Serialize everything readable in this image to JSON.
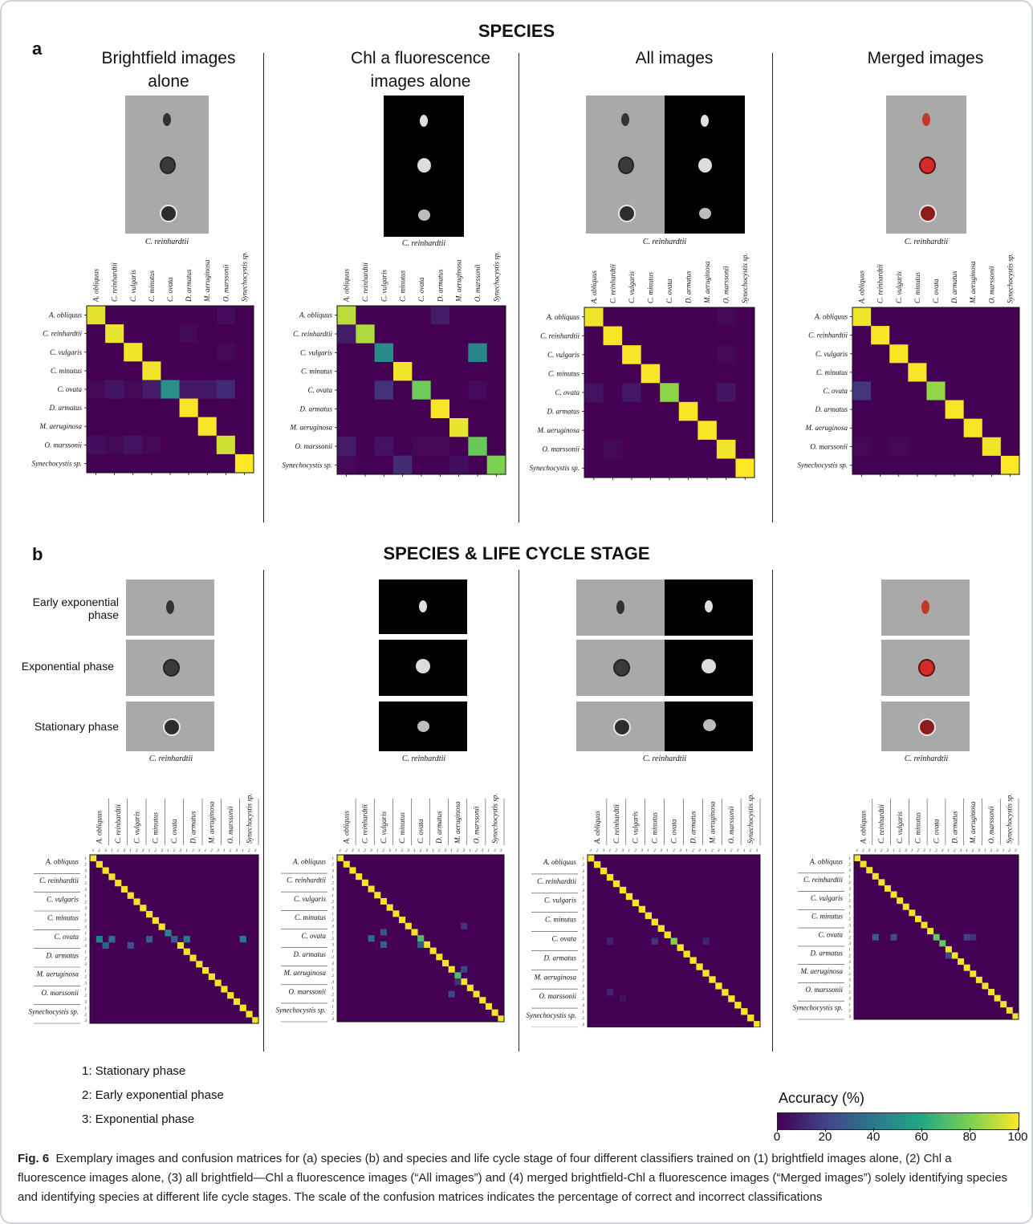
{
  "header": {
    "panel_a_letter": "a",
    "panel_b_letter": "b",
    "species_title": "SPECIES",
    "species_life_title": "SPECIES & LIFE CYCLE STAGE"
  },
  "columns": [
    {
      "title_line1": "Brightfield images",
      "title_line2": "alone"
    },
    {
      "title_line1": "Chl a fluorescence",
      "title_line2": "images alone"
    },
    {
      "title_line1": "All images",
      "title_line2": ""
    },
    {
      "title_line1": "Merged images",
      "title_line2": ""
    }
  ],
  "image_caption": "C. reinhardtii",
  "phases": [
    "Early exponential phase",
    "Exponential phase",
    "Stationary phase"
  ],
  "phases_display": {
    "early_line1": "Early exponential",
    "early_line2": "phase",
    "exponential": "Exponential phase",
    "stationary": "Stationary phase"
  },
  "species": [
    "A. obliquus",
    "C. reinhardtii",
    "C. vulgaris",
    "C. minutus",
    "C. ovata",
    "D. armatus",
    "M. aeruginosa",
    "O. marssonii",
    "Synechocystis sp."
  ],
  "stage_legend": [
    "1: Stationary phase",
    "2: Early exponential phase",
    "3: Exponential phase"
  ],
  "colorbar": {
    "label": "Accuracy (%)",
    "ticks": [
      "0",
      "20",
      "40",
      "60",
      "80",
      "100"
    ],
    "colors": [
      "#440154",
      "#414487",
      "#2a788e",
      "#22a884",
      "#7ad151",
      "#fde725"
    ]
  },
  "caption": {
    "label": "Fig. 6",
    "text": "Exemplary images and confusion matrices for (a) species (b) and species and life cycle stage of four different classifiers trained on (1) brightfield images alone, (2) Chl a fluorescence images alone, (3) all brightfield—Chl a fluorescence images (“All images”) and (4) merged brightfield-Chl a fluorescence images (“Merged images”) solely identifying species and identifying species at different life cycle stages. The scale of the confusion matrices indicates the percentage of correct and incorrect classifications"
  },
  "chart_data": [
    {
      "type": "heatmap",
      "title": "Brightfield images alone",
      "categories": [
        "A. obliquus",
        "C. reinhardtii",
        "C. vulgaris",
        "C. minutus",
        "C. ovata",
        "D. armatus",
        "M. aeruginosa",
        "O. marssonii",
        "Synechocystis sp."
      ],
      "values": [
        [
          96,
          0,
          0,
          0,
          0,
          0,
          0,
          3,
          0
        ],
        [
          0,
          97,
          0,
          0,
          0,
          2,
          0,
          0,
          0
        ],
        [
          0,
          0,
          98,
          0,
          0,
          0,
          0,
          2,
          0
        ],
        [
          0,
          0,
          0,
          98,
          0,
          0,
          0,
          0,
          0
        ],
        [
          2,
          6,
          2,
          8,
          50,
          7,
          7,
          12,
          0
        ],
        [
          0,
          0,
          0,
          0,
          0,
          99,
          0,
          0,
          0
        ],
        [
          0,
          0,
          0,
          0,
          0,
          0,
          99,
          0,
          0
        ],
        [
          4,
          2,
          5,
          2,
          0,
          0,
          0,
          93,
          0
        ],
        [
          0,
          0,
          0,
          0,
          0,
          0,
          0,
          0,
          100
        ]
      ],
      "zlim": [
        0,
        100
      ]
    },
    {
      "type": "heatmap",
      "title": "Chl a fluorescence images alone",
      "categories": [
        "A. obliquus",
        "C. reinhardtii",
        "C. vulgaris",
        "C. minutus",
        "C. ovata",
        "D. armatus",
        "M. aeruginosa",
        "O. marssonii",
        "Synechocystis sp."
      ],
      "values": [
        [
          90,
          0,
          0,
          0,
          0,
          8,
          0,
          0,
          0
        ],
        [
          8,
          88,
          0,
          0,
          0,
          0,
          0,
          0,
          0
        ],
        [
          0,
          0,
          48,
          0,
          0,
          0,
          0,
          46,
          0
        ],
        [
          0,
          0,
          0,
          98,
          0,
          0,
          0,
          0,
          0
        ],
        [
          0,
          0,
          15,
          0,
          77,
          0,
          0,
          3,
          0
        ],
        [
          0,
          0,
          0,
          0,
          0,
          99,
          0,
          0,
          0
        ],
        [
          0,
          0,
          0,
          0,
          0,
          0,
          97,
          0,
          0
        ],
        [
          8,
          0,
          5,
          0,
          2,
          2,
          0,
          76,
          0
        ],
        [
          2,
          0,
          0,
          13,
          0,
          0,
          4,
          0,
          80
        ]
      ],
      "zlim": [
        0,
        100
      ]
    },
    {
      "type": "heatmap",
      "title": "All images",
      "categories": [
        "A. obliquus",
        "C. reinhardtii",
        "C. vulgaris",
        "C. minutus",
        "C. ovata",
        "D. armatus",
        "M. aeruginosa",
        "O. marssonii",
        "Synechocystis sp."
      ],
      "values": [
        [
          98,
          0,
          0,
          0,
          0,
          0,
          0,
          2,
          0
        ],
        [
          0,
          99,
          0,
          0,
          0,
          0,
          0,
          0,
          0
        ],
        [
          0,
          0,
          99,
          0,
          0,
          0,
          0,
          2,
          0
        ],
        [
          0,
          0,
          0,
          99,
          0,
          0,
          0,
          0,
          0
        ],
        [
          5,
          0,
          7,
          0,
          83,
          0,
          0,
          6,
          0
        ],
        [
          0,
          0,
          0,
          0,
          0,
          99,
          0,
          0,
          0
        ],
        [
          0,
          0,
          0,
          0,
          0,
          0,
          99,
          0,
          0
        ],
        [
          0,
          2,
          0,
          0,
          0,
          0,
          0,
          98,
          0
        ],
        [
          0,
          0,
          0,
          0,
          0,
          0,
          0,
          0,
          100
        ]
      ],
      "zlim": [
        0,
        100
      ]
    },
    {
      "type": "heatmap",
      "title": "Merged images",
      "categories": [
        "A. obliquus",
        "C. reinhardtii",
        "C. vulgaris",
        "C. minutus",
        "C. ovata",
        "D. armatus",
        "M. aeruginosa",
        "O. marssonii",
        "Synechocystis sp."
      ],
      "values": [
        [
          98,
          0,
          0,
          0,
          0,
          0,
          0,
          0,
          0
        ],
        [
          0,
          99,
          0,
          0,
          0,
          0,
          0,
          0,
          0
        ],
        [
          0,
          0,
          99,
          0,
          0,
          0,
          0,
          0,
          0
        ],
        [
          0,
          0,
          0,
          99,
          0,
          0,
          0,
          0,
          0
        ],
        [
          16,
          0,
          0,
          0,
          84,
          0,
          0,
          0,
          0
        ],
        [
          0,
          0,
          0,
          0,
          0,
          99,
          0,
          0,
          0
        ],
        [
          0,
          0,
          0,
          0,
          0,
          0,
          99,
          0,
          0
        ],
        [
          2,
          0,
          2,
          0,
          0,
          0,
          0,
          98,
          0
        ],
        [
          0,
          0,
          0,
          0,
          0,
          0,
          0,
          0,
          100
        ]
      ],
      "zlim": [
        0,
        100
      ]
    }
  ]
}
